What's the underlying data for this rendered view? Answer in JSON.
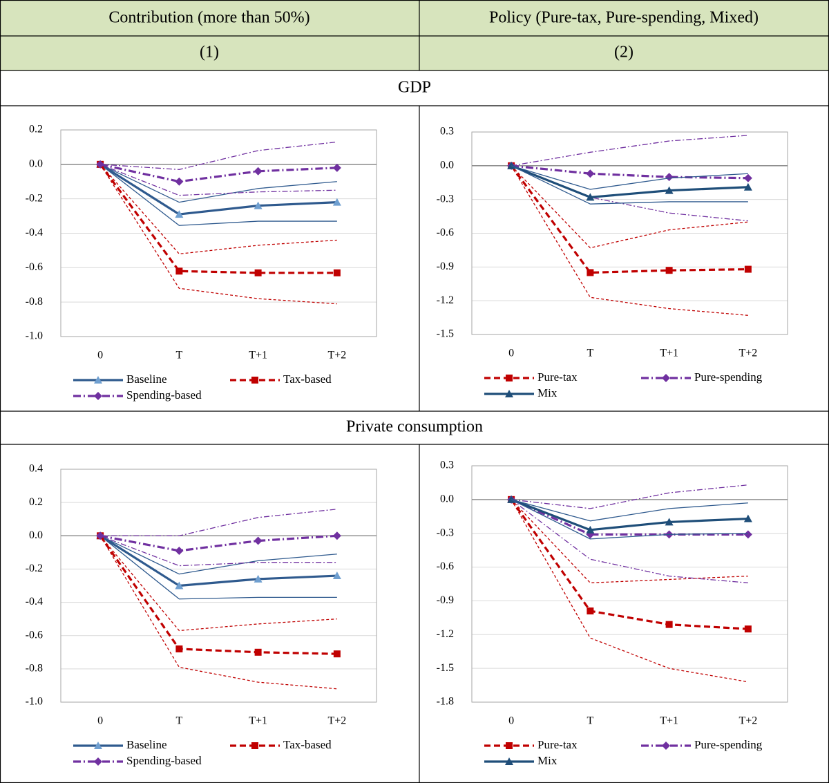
{
  "table": {
    "header": [
      "Contribution (more than 50%)",
      "Policy (Pure-tax, Pure-spending, Mixed)"
    ],
    "subheader": [
      "(1)",
      "(2)"
    ],
    "sections": [
      "GDP",
      "Private consumption"
    ]
  },
  "chart_data": [
    {
      "type": "line",
      "categories": [
        "0",
        "T",
        "T+1",
        "T+2"
      ],
      "ylim": [
        -1.0,
        0.2
      ],
      "yticks": [
        {
          "value": -1.0,
          "label": "-1.0"
        },
        -0.8,
        -0.6,
        -0.4,
        -0.2,
        {
          "value": 0,
          "label": "0.0"
        },
        0.2
      ],
      "grid": true,
      "legend": "bottom",
      "series": [
        {
          "name": "Baseline",
          "color": "#2f5a8e",
          "marker_color": "#6f9fd0",
          "style": "solid",
          "marker": "triangle",
          "values": [
            0,
            -0.29,
            -0.24,
            -0.22
          ]
        },
        {
          "color": "#2f5a8e",
          "style": "solid",
          "values": [
            0,
            -0.22,
            -0.14,
            -0.1
          ]
        },
        {
          "color": "#2f5a8e",
          "style": "solid",
          "values": [
            0,
            -0.355,
            -0.33,
            -0.33
          ]
        },
        {
          "name": "Tax-based",
          "color": "#c00000",
          "marker_color": "#c00000",
          "style": "dashed",
          "marker": "square",
          "values": [
            0,
            -0.62,
            -0.63,
            -0.63
          ]
        },
        {
          "color": "#c00000",
          "style": "dashed",
          "values": [
            0,
            -0.52,
            -0.47,
            -0.44
          ]
        },
        {
          "color": "#c00000",
          "style": "dashed",
          "values": [
            0,
            -0.72,
            -0.78,
            -0.81
          ]
        },
        {
          "name": "Spending-based",
          "color": "#7030a0",
          "marker_color": "#7030a0",
          "style": "dashdot",
          "marker": "diamond",
          "values": [
            0,
            -0.1,
            -0.04,
            -0.02
          ]
        },
        {
          "color": "#7030a0",
          "style": "dashdot",
          "values": [
            0,
            -0.03,
            0.08,
            0.13
          ]
        },
        {
          "color": "#7030a0",
          "style": "dashdot",
          "values": [
            0,
            -0.18,
            -0.16,
            -0.15
          ]
        }
      ]
    },
    {
      "type": "line",
      "categories": [
        "0",
        "T",
        "T+1",
        "T+2"
      ],
      "ylim": [
        -1.5,
        0.3
      ],
      "yticks": [
        -1.5,
        -1.2,
        -0.9,
        -0.6,
        -0.3,
        {
          "value": 0,
          "label": "0.0"
        },
        0.3
      ],
      "grid": true,
      "legend": "bottom",
      "series": [
        {
          "name": "Pure-tax",
          "color": "#c00000",
          "marker_color": "#c00000",
          "style": "dashed",
          "marker": "square",
          "values": [
            0,
            -0.95,
            -0.93,
            -0.92
          ]
        },
        {
          "color": "#c00000",
          "style": "dashed",
          "values": [
            0,
            -0.73,
            -0.57,
            -0.5
          ]
        },
        {
          "color": "#c00000",
          "style": "dashed",
          "values": [
            0,
            -1.17,
            -1.27,
            -1.33
          ]
        },
        {
          "name": "Pure-spending",
          "color": "#7030a0",
          "marker_color": "#7030a0",
          "style": "dashdot",
          "marker": "diamond",
          "values": [
            0,
            -0.07,
            -0.1,
            -0.11
          ]
        },
        {
          "color": "#7030a0",
          "style": "dashdot",
          "values": [
            0,
            0.12,
            0.22,
            0.27
          ]
        },
        {
          "color": "#7030a0",
          "style": "dashdot",
          "values": [
            0,
            -0.28,
            -0.42,
            -0.49
          ]
        },
        {
          "name": "Mix",
          "color": "#1f4e79",
          "marker_color": "#1f4e79",
          "style": "solid",
          "marker": "triangle",
          "values": [
            0,
            -0.28,
            -0.22,
            -0.19
          ]
        },
        {
          "color": "#2f5a8e",
          "style": "solid",
          "values": [
            0,
            -0.21,
            -0.11,
            -0.07
          ]
        },
        {
          "color": "#2f5a8e",
          "style": "solid",
          "values": [
            0,
            -0.34,
            -0.32,
            -0.32
          ]
        }
      ]
    },
    {
      "type": "line",
      "categories": [
        "0",
        "T",
        "T+1",
        "T+2"
      ],
      "ylim": [
        -1.0,
        0.4
      ],
      "yticks": [
        {
          "value": -1.0,
          "label": "-1.0"
        },
        -0.8,
        -0.6,
        -0.4,
        -0.2,
        {
          "value": 0,
          "label": "0.0"
        },
        0.2,
        0.4
      ],
      "grid": true,
      "legend": "bottom",
      "series": [
        {
          "name": "Baseline",
          "color": "#2f5a8e",
          "marker_color": "#6f9fd0",
          "style": "solid",
          "marker": "triangle",
          "values": [
            0,
            -0.3,
            -0.26,
            -0.24
          ]
        },
        {
          "color": "#2f5a8e",
          "style": "solid",
          "values": [
            0,
            -0.23,
            -0.15,
            -0.11
          ]
        },
        {
          "color": "#2f5a8e",
          "style": "solid",
          "values": [
            0,
            -0.38,
            -0.37,
            -0.37
          ]
        },
        {
          "name": "Tax-based",
          "color": "#c00000",
          "marker_color": "#c00000",
          "style": "dashed",
          "marker": "square",
          "values": [
            0,
            -0.68,
            -0.7,
            -0.71
          ]
        },
        {
          "color": "#c00000",
          "style": "dashed",
          "values": [
            0,
            -0.57,
            -0.53,
            -0.5
          ]
        },
        {
          "color": "#c00000",
          "style": "dashed",
          "values": [
            0,
            -0.79,
            -0.88,
            -0.92
          ]
        },
        {
          "name": "Spending-based",
          "color": "#7030a0",
          "marker_color": "#7030a0",
          "style": "dashdot",
          "marker": "diamond",
          "values": [
            0,
            -0.09,
            -0.03,
            0
          ]
        },
        {
          "color": "#7030a0",
          "style": "dashdot",
          "values": [
            0,
            0,
            0.11,
            0.16
          ]
        },
        {
          "color": "#7030a0",
          "style": "dashdot",
          "values": [
            0,
            -0.18,
            -0.16,
            -0.16
          ]
        }
      ]
    },
    {
      "type": "line",
      "categories": [
        "0",
        "T",
        "T+1",
        "T+2"
      ],
      "ylim": [
        -1.8,
        0.3
      ],
      "yticks": [
        -1.8,
        -1.5,
        -1.2,
        -0.9,
        -0.6,
        -0.3,
        {
          "value": 0,
          "label": "0.0"
        },
        0.3
      ],
      "grid": true,
      "legend": "bottom",
      "series": [
        {
          "name": "Pure-tax",
          "color": "#c00000",
          "marker_color": "#c00000",
          "style": "dashed",
          "marker": "square",
          "values": [
            0,
            -0.99,
            -1.11,
            -1.15
          ]
        },
        {
          "color": "#c00000",
          "style": "dashed",
          "values": [
            0,
            -0.74,
            -0.71,
            -0.68
          ]
        },
        {
          "color": "#c00000",
          "style": "dashed",
          "values": [
            0,
            -1.23,
            -1.5,
            -1.62
          ]
        },
        {
          "name": "Pure-spending",
          "color": "#7030a0",
          "marker_color": "#7030a0",
          "style": "dashdot",
          "marker": "diamond",
          "values": [
            0,
            -0.31,
            -0.31,
            -0.31
          ]
        },
        {
          "color": "#7030a0",
          "style": "dashdot",
          "values": [
            0,
            -0.08,
            0.06,
            0.13
          ]
        },
        {
          "color": "#7030a0",
          "style": "dashdot",
          "values": [
            0,
            -0.53,
            -0.68,
            -0.74
          ]
        },
        {
          "name": "Mix",
          "color": "#1f4e79",
          "marker_color": "#1f4e79",
          "style": "solid",
          "marker": "triangle",
          "values": [
            0,
            -0.27,
            -0.2,
            -0.17
          ]
        },
        {
          "color": "#2f5a8e",
          "style": "solid",
          "values": [
            0,
            -0.19,
            -0.08,
            -0.03
          ]
        },
        {
          "color": "#2f5a8e",
          "style": "solid",
          "values": [
            0,
            -0.35,
            -0.31,
            -0.3
          ]
        }
      ]
    }
  ]
}
